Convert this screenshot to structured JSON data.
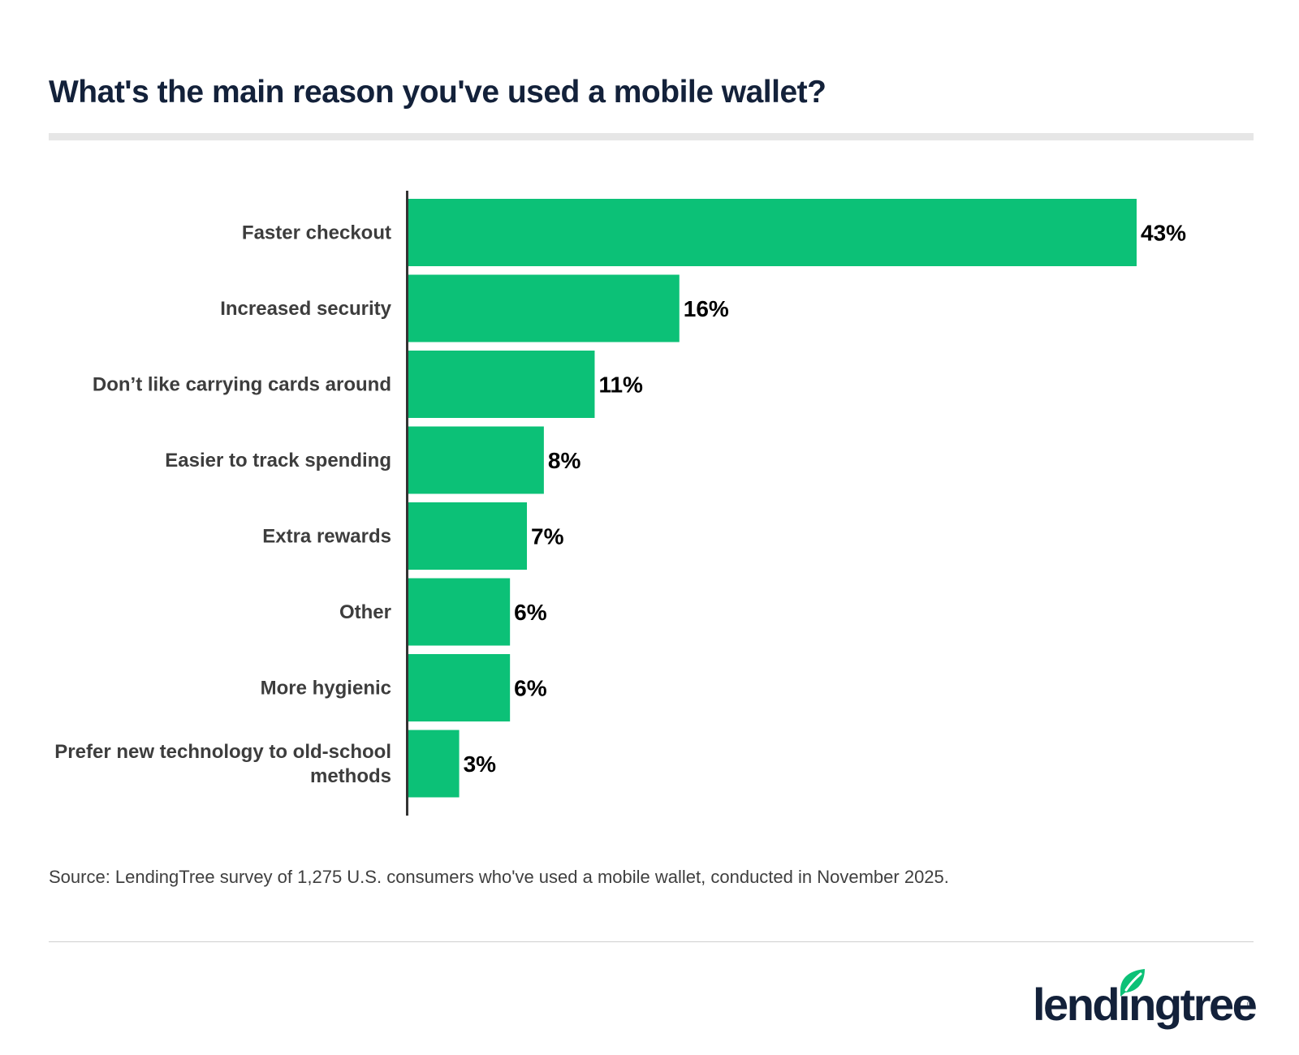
{
  "chart_data": {
    "type": "bar",
    "orientation": "horizontal",
    "title": "What's the main reason you've used a mobile wallet?",
    "categories": [
      "Faster checkout",
      "Increased security",
      "Don’t like carrying cards around",
      "Easier to track spending",
      "Extra rewards",
      "Other",
      "More hygienic",
      "Prefer new technology to old-school methods"
    ],
    "values": [
      43,
      16,
      11,
      8,
      7,
      6,
      6,
      3
    ],
    "value_labels": [
      "43%",
      "16%",
      "11%",
      "8%",
      "7%",
      "6%",
      "6%",
      "3%"
    ],
    "xlim": [
      0,
      43
    ],
    "grid": false,
    "legend": "none",
    "bar_color": "#0cc177",
    "source": "Source: LendingTree survey of 1,275 U.S. consumers who've used a mobile wallet, conducted in November 2025."
  },
  "brand": {
    "name": "lendingtree",
    "registered_mark": "®",
    "leaf_color": "#0cc177",
    "text_color": "#13213a"
  }
}
